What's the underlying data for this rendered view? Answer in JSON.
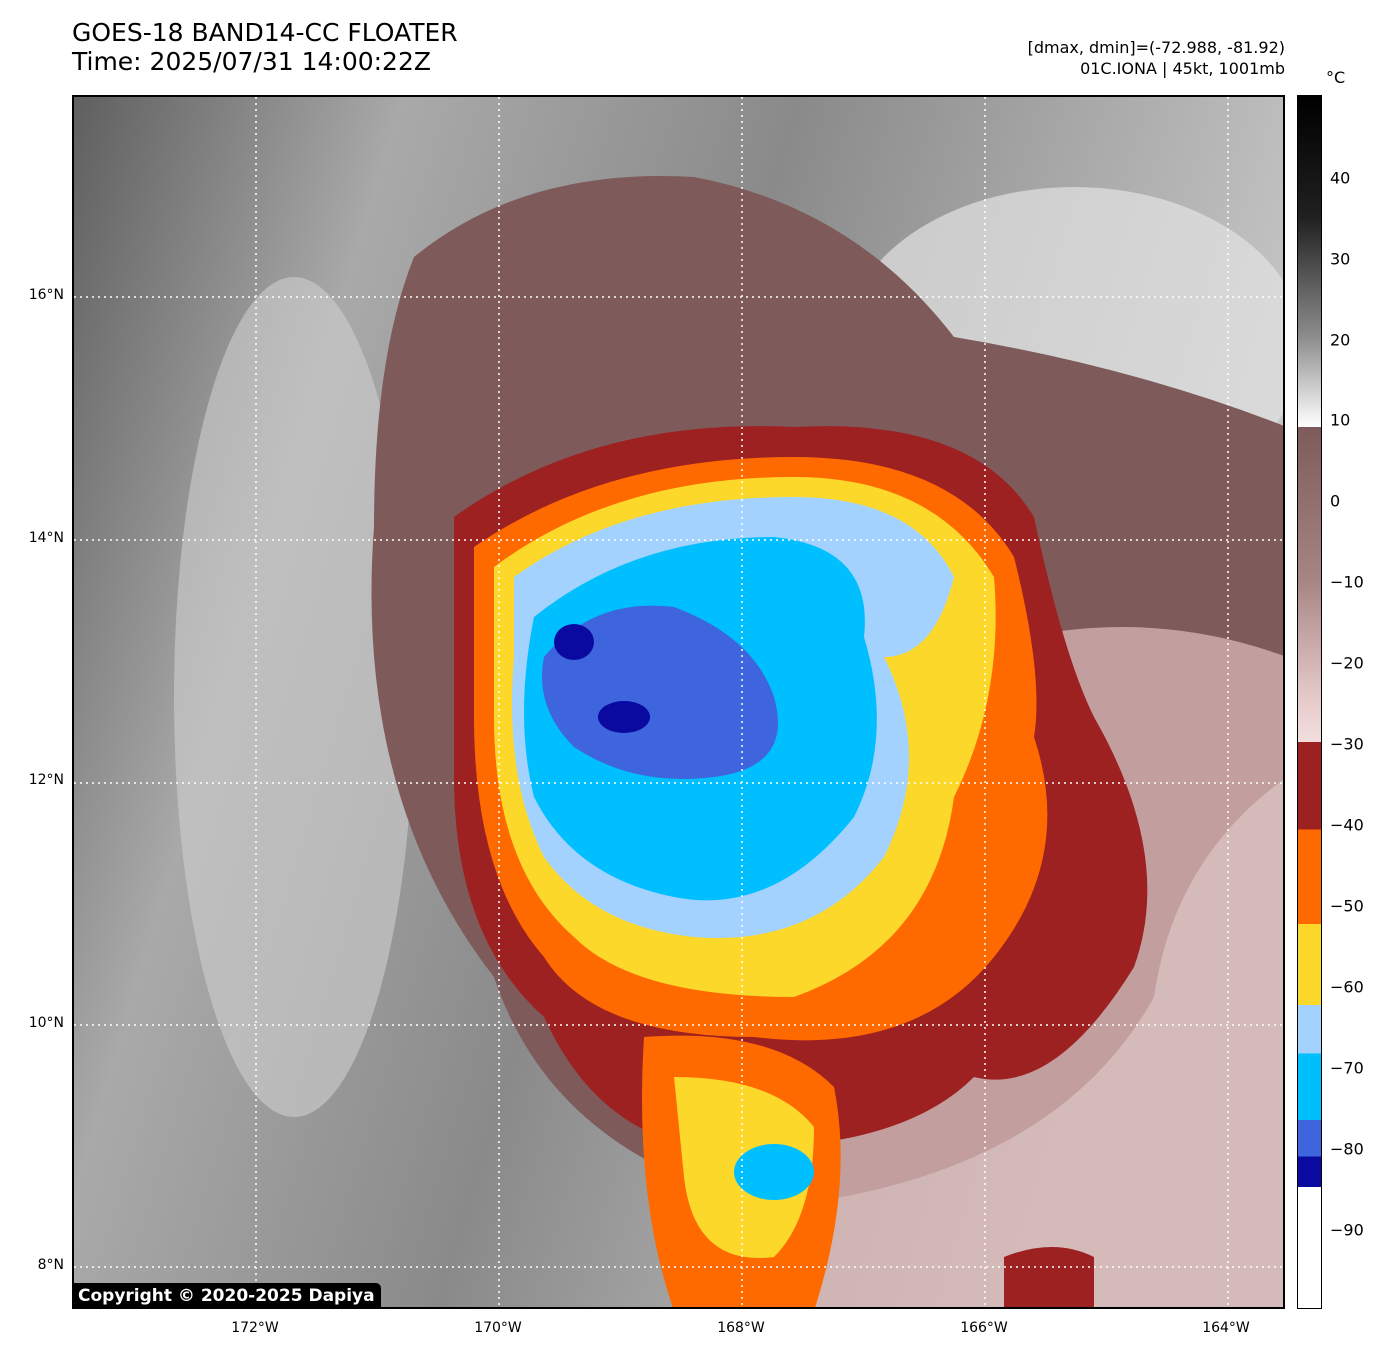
{
  "header": {
    "title_line1": "GOES-18 BAND14-CC FLOATER",
    "title_line2": "Time: 2025/07/31 14:00:22Z",
    "range_text": "[dmax, dmin]=(-72.988, -81.92)",
    "storm_text": "01C.IONA | 45kt, 1001mb"
  },
  "map": {
    "lat_labels": [
      "16°N",
      "14°N",
      "12°N",
      "10°N",
      "8°N"
    ],
    "lon_labels": [
      "172°W",
      "170°W",
      "168°W",
      "166°W",
      "164°W"
    ],
    "copyright": "Copyright © 2020-2025 Dapiya"
  },
  "colorbar": {
    "unit": "°C",
    "labels": [
      "40",
      "30",
      "20",
      "10",
      "0",
      "−10",
      "−20",
      "−30",
      "−40",
      "−50",
      "−60",
      "−70",
      "−80",
      "−90"
    ],
    "colors": {
      "warm_gray_dark": "#000000",
      "warm_gray_light": "#ffffff",
      "brown": "#7e5a5a",
      "pink": "#f2dede",
      "dark_red": "#9e2121",
      "orange": "#ff6a00",
      "yellow": "#fcd82a",
      "light_blue": "#a3d2ff",
      "cyan": "#00bfff",
      "royal_blue": "#3e65dd",
      "navy": "#0a0aa0",
      "white": "#ffffff"
    }
  }
}
